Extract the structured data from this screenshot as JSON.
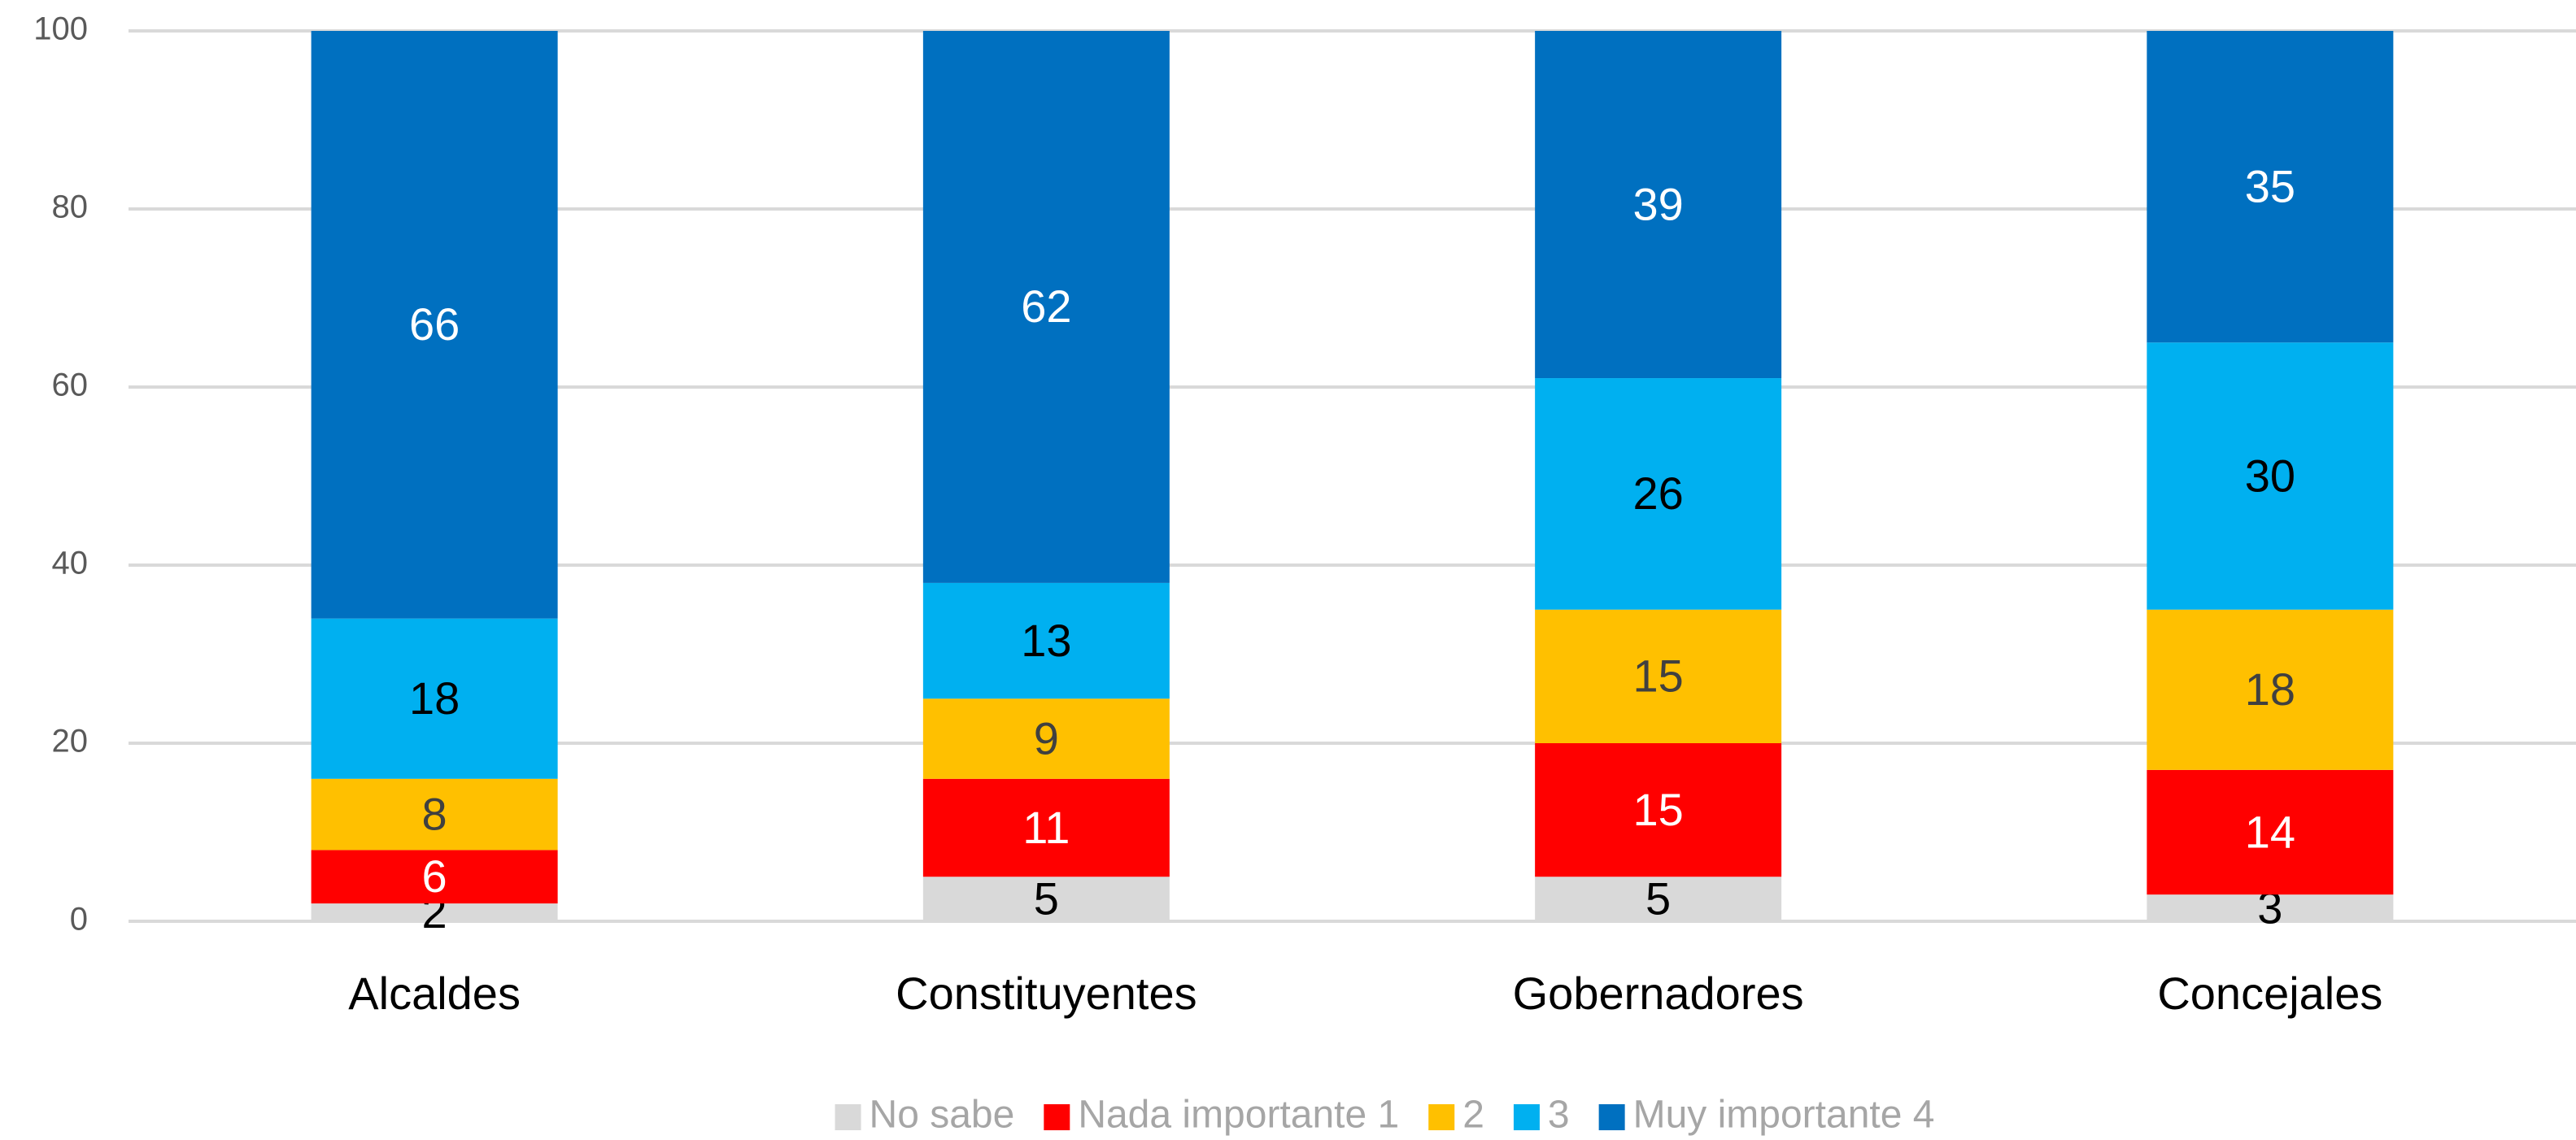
{
  "chart_data": {
    "type": "stacked_bar",
    "categories": [
      "Alcaldes",
      "Constituyentes",
      "Gobernadores",
      "Concejales"
    ],
    "series": [
      {
        "name": "No sabe",
        "color": "#d9d9d9",
        "label_color": "#000000",
        "values": [
          2,
          5,
          5,
          3
        ]
      },
      {
        "name": "Nada importante 1",
        "color": "#ff0000",
        "label_color": "#ffffff",
        "values": [
          6,
          11,
          15,
          14
        ]
      },
      {
        "name": "2",
        "color": "#ffc000",
        "label_color": "#404040",
        "values": [
          8,
          9,
          15,
          18
        ]
      },
      {
        "name": "3",
        "color": "#00b0f0",
        "label_color": "#000000",
        "values": [
          18,
          13,
          26,
          30
        ]
      },
      {
        "name": "Muy importante 4",
        "color": "#0070c0",
        "label_color": "#ffffff",
        "values": [
          66,
          62,
          39,
          35
        ]
      }
    ],
    "ylim": [
      0,
      100
    ],
    "yticks": [
      0,
      20,
      40,
      60,
      80,
      100
    ],
    "grid": true,
    "legend": "bottom"
  }
}
